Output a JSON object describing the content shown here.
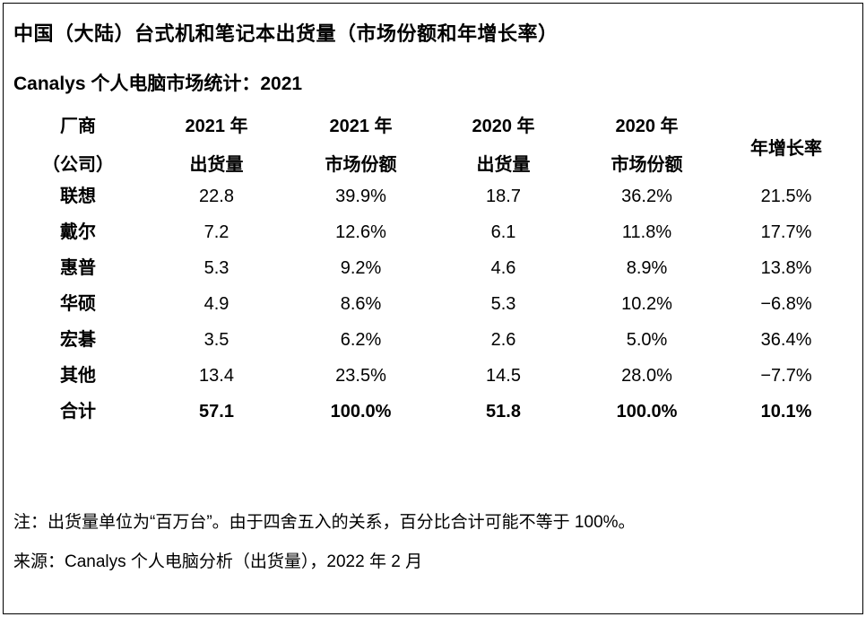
{
  "page": {
    "title": "中国（大陆）台式机和笔记本出货量（市场份额和年增长率）",
    "subtitle": "Canalys 个人电脑市场统计：2021"
  },
  "chart_data": {
    "type": "table",
    "title": "中国（大陆）台式机和笔记本出货量（市场份额和年增长率）",
    "subtitle": "Canalys 个人电脑市场统计：2021",
    "unit": "百万台",
    "columns": [
      {
        "line1": "厂商",
        "line2": "（公司）"
      },
      {
        "line1": "2021 年",
        "line2": "出货量"
      },
      {
        "line1": "2021 年",
        "line2": "市场份额"
      },
      {
        "line1": "2020 年",
        "line2": "出货量"
      },
      {
        "line1": "2020 年",
        "line2": "市场份额"
      },
      {
        "line1": "年增长率",
        "line2": ""
      }
    ],
    "rows": [
      {
        "vendor": "联想",
        "shipments_2021": "22.8",
        "share_2021": "39.9%",
        "shipments_2020": "18.7",
        "share_2020": "36.2%",
        "growth": "21.5%"
      },
      {
        "vendor": "戴尔",
        "shipments_2021": "7.2",
        "share_2021": "12.6%",
        "shipments_2020": "6.1",
        "share_2020": "11.8%",
        "growth": "17.7%"
      },
      {
        "vendor": "惠普",
        "shipments_2021": "5.3",
        "share_2021": "9.2%",
        "shipments_2020": "4.6",
        "share_2020": "8.9%",
        "growth": "13.8%"
      },
      {
        "vendor": "华硕",
        "shipments_2021": "4.9",
        "share_2021": "8.6%",
        "shipments_2020": "5.3",
        "share_2020": "10.2%",
        "growth": "−6.8%"
      },
      {
        "vendor": "宏碁",
        "shipments_2021": "3.5",
        "share_2021": "6.2%",
        "shipments_2020": "2.6",
        "share_2020": "5.0%",
        "growth": "36.4%"
      },
      {
        "vendor": "其他",
        "shipments_2021": "13.4",
        "share_2021": "23.5%",
        "shipments_2020": "14.5",
        "share_2020": "28.0%",
        "growth": "−7.7%"
      },
      {
        "vendor": "合计",
        "shipments_2021": "57.1",
        "share_2021": "100.0%",
        "shipments_2020": "51.8",
        "share_2020": "100.0%",
        "growth": "10.1%"
      }
    ]
  },
  "notes": {
    "note": "注：出货量单位为“百万台”。由于四舍五入的关系，百分比合计可能不等于 100%。",
    "source": "来源：Canalys 个人电脑分析（出货量），2022 年 2 月"
  },
  "colors": {
    "background": "#ffffff",
    "text": "#000000",
    "border": "#000000"
  }
}
